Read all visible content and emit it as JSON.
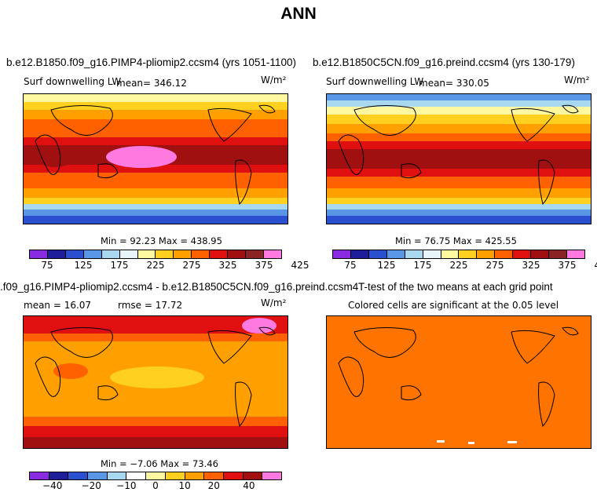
{
  "figure_title": "ANN",
  "panels": {
    "top_left": {
      "title": "b.e12.B1850.f09_g16.PIMP4-pliomip2.ccsm4 (yrs 1051-1100)",
      "variable": "Surf downwelling LW",
      "stat": "mean= 346.12",
      "units": "W/m²",
      "minmax": "Min =  92.23 Max = 438.95"
    },
    "top_right": {
      "title": "b.e12.B1850C5CN.f09_g16.preind.ccsm4 (yrs 130-179)",
      "variable": "Surf downwelling LW",
      "stat": "mean= 330.05",
      "units": "W/m²",
      "minmax": "Min =  76.75 Max = 425.55"
    },
    "bottom_left": {
      "title": ".f09_g16.PIMP4-pliomip2.ccsm4 - b.e12.B1850C5CN.f09_g16.preind.ccsm4",
      "stat_mean": "mean =  16.07",
      "stat_rmse": "rmse =  17.72",
      "units": "W/m²",
      "minmax": "Min =  −7.06 Max =  73.46"
    },
    "bottom_right": {
      "title": "T-test of the two means at each grid point",
      "subtitle": "Colored cells are significant at the 0.05 level"
    }
  },
  "colorbars": {
    "abs": {
      "colors": [
        "#8a2be2",
        "#1e1e9a",
        "#2a50d0",
        "#5a96e6",
        "#a8d8f0",
        "#e6f4fa",
        "#fff8a0",
        "#ffd020",
        "#ffa000",
        "#ff6000",
        "#e01010",
        "#a01010",
        "#8a2424",
        "#ff7ae0"
      ],
      "labels": [
        "75",
        "125",
        "175",
        "225",
        "275",
        "325",
        "375",
        "425"
      ]
    },
    "diff": {
      "colors": [
        "#8a2be2",
        "#1e1e9a",
        "#2a50d0",
        "#5a96e6",
        "#a8d8f0",
        "#ffffff",
        "#fff8a0",
        "#ffd020",
        "#ffa000",
        "#ff6000",
        "#e01010",
        "#a01010",
        "#ff7ae0"
      ],
      "labels": [
        "−40",
        "−20",
        "−10",
        "0",
        "10",
        "20",
        "40"
      ]
    }
  },
  "colors": {
    "ttest_fill": "#ff7300"
  }
}
